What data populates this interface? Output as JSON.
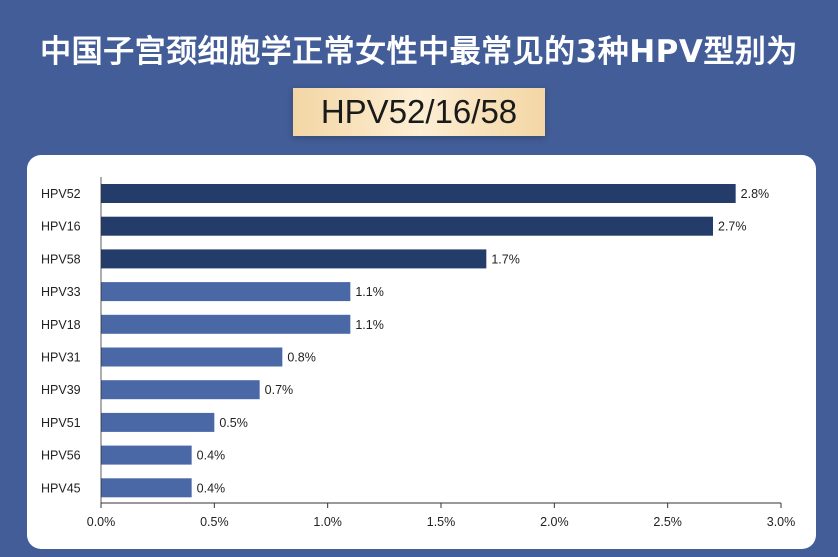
{
  "header": {
    "title": "中国子宫颈细胞学正常女性中最常见的3种HPV型别为",
    "subtitle": "HPV52/16/58"
  },
  "colors": {
    "background": "#425d97",
    "bar_top": "#243c69",
    "bar_rest": "#4a67a6",
    "subtitle_bg": "#f7e1b8"
  },
  "chart_data": {
    "type": "bar",
    "orientation": "horizontal",
    "categories": [
      "HPV52",
      "HPV16",
      "HPV58",
      "HPV33",
      "HPV18",
      "HPV31",
      "HPV39",
      "HPV51",
      "HPV56",
      "HPV45"
    ],
    "values": [
      2.8,
      2.7,
      1.7,
      1.1,
      1.1,
      0.8,
      0.7,
      0.5,
      0.4,
      0.4
    ],
    "value_labels": [
      "2.8%",
      "2.7%",
      "1.7%",
      "1.1%",
      "1.1%",
      "0.8%",
      "0.7%",
      "0.5%",
      "0.4%",
      "0.4%"
    ],
    "highlighted": [
      "HPV52",
      "HPV16",
      "HPV58"
    ],
    "xlim": [
      0,
      3.0
    ],
    "xticks": [
      0,
      0.5,
      1.0,
      1.5,
      2.0,
      2.5,
      3.0
    ],
    "xtick_labels": [
      "0.0%",
      "0.5%",
      "1.0%",
      "1.5%",
      "2.0%",
      "2.5%",
      "3.0%"
    ],
    "grid": false
  }
}
